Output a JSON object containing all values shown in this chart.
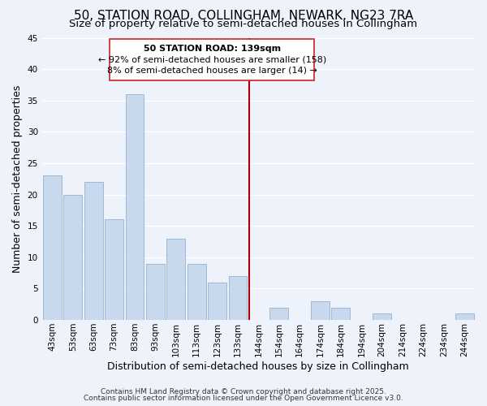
{
  "title": "50, STATION ROAD, COLLINGHAM, NEWARK, NG23 7RA",
  "subtitle": "Size of property relative to semi-detached houses in Collingham",
  "xlabel": "Distribution of semi-detached houses by size in Collingham",
  "ylabel": "Number of semi-detached properties",
  "bar_labels": [
    "43sqm",
    "53sqm",
    "63sqm",
    "73sqm",
    "83sqm",
    "93sqm",
    "103sqm",
    "113sqm",
    "123sqm",
    "133sqm",
    "144sqm",
    "154sqm",
    "164sqm",
    "174sqm",
    "184sqm",
    "194sqm",
    "204sqm",
    "214sqm",
    "224sqm",
    "234sqm",
    "244sqm"
  ],
  "bar_values": [
    23,
    20,
    22,
    16,
    36,
    9,
    13,
    9,
    6,
    7,
    0,
    2,
    0,
    3,
    2,
    0,
    1,
    0,
    0,
    0,
    1
  ],
  "bar_color": "#c8d9ee",
  "bar_edge_color": "#a0b8d8",
  "background_color": "#eef2fb",
  "grid_color": "#ffffff",
  "vline_color": "#aa0000",
  "annotation_title": "50 STATION ROAD: 139sqm",
  "annotation_line1": "← 92% of semi-detached houses are smaller (158)",
  "annotation_line2": "8% of semi-detached houses are larger (14) →",
  "footer1": "Contains HM Land Registry data © Crown copyright and database right 2025.",
  "footer2": "Contains public sector information licensed under the Open Government Licence v3.0.",
  "ylim": [
    0,
    45
  ],
  "yticks": [
    0,
    5,
    10,
    15,
    20,
    25,
    30,
    35,
    40,
    45
  ],
  "title_fontsize": 11,
  "subtitle_fontsize": 9.5,
  "axis_label_fontsize": 9,
  "tick_fontsize": 7.5,
  "annotation_fontsize": 8,
  "footer_fontsize": 6.5
}
